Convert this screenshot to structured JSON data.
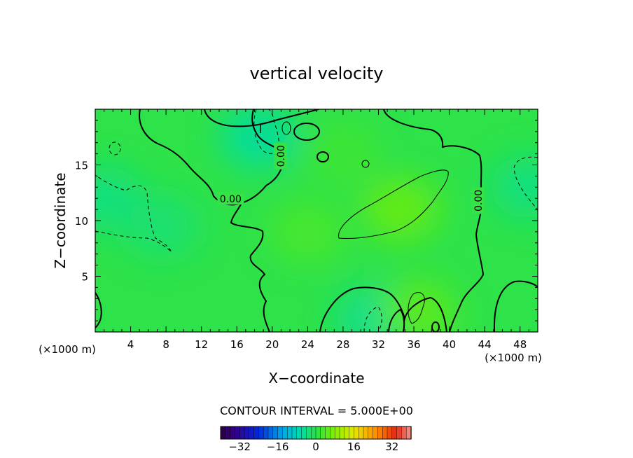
{
  "chart_data": {
    "type": "heatmap",
    "title": "vertical velocity",
    "xlabel": "X−coordinate",
    "ylabel": "Z−coordinate",
    "x_unit_left": "(×1000 m)",
    "x_unit_right": "(×1000 m)",
    "xlim": [
      0,
      50
    ],
    "ylim": [
      0,
      20
    ],
    "x_ticks": [
      4,
      8,
      12,
      16,
      20,
      24,
      28,
      32,
      36,
      40,
      44,
      48
    ],
    "y_ticks": [
      5,
      10,
      15
    ],
    "grid": false,
    "contour_interval_text": "CONTOUR INTERVAL = 5.000E+00",
    "contour_labels": [
      {
        "text": "0.00",
        "x": 15.3,
        "y": 12.0,
        "rotate": 0
      },
      {
        "text": "0.00",
        "x": 20.9,
        "y": 15.8,
        "rotate": -90
      },
      {
        "text": "0.00",
        "x": 43.2,
        "y": 11.8,
        "rotate": -90
      }
    ],
    "colorbar": {
      "min": -40,
      "max": 40,
      "ticks": [
        -32,
        -16,
        0,
        16,
        32
      ],
      "tick_labels": [
        "−32",
        "−16",
        "0",
        "16",
        "32"
      ]
    },
    "field_features": [
      {
        "x": 18.5,
        "y": 17.5,
        "value": -6
      },
      {
        "x": 1.0,
        "y": 12.0,
        "value": -4
      },
      {
        "x": 7.5,
        "y": 9.5,
        "value": -3
      },
      {
        "x": 49.0,
        "y": 13.0,
        "value": -4
      },
      {
        "x": 31.5,
        "y": 1.2,
        "value": -5
      },
      {
        "x": 34.5,
        "y": 11.0,
        "value": 6
      },
      {
        "x": 36.5,
        "y": 1.8,
        "value": 5
      },
      {
        "x": 24.0,
        "y": 9.0,
        "value": 3
      },
      {
        "x": 28.0,
        "y": 16.0,
        "value": 2
      }
    ]
  }
}
